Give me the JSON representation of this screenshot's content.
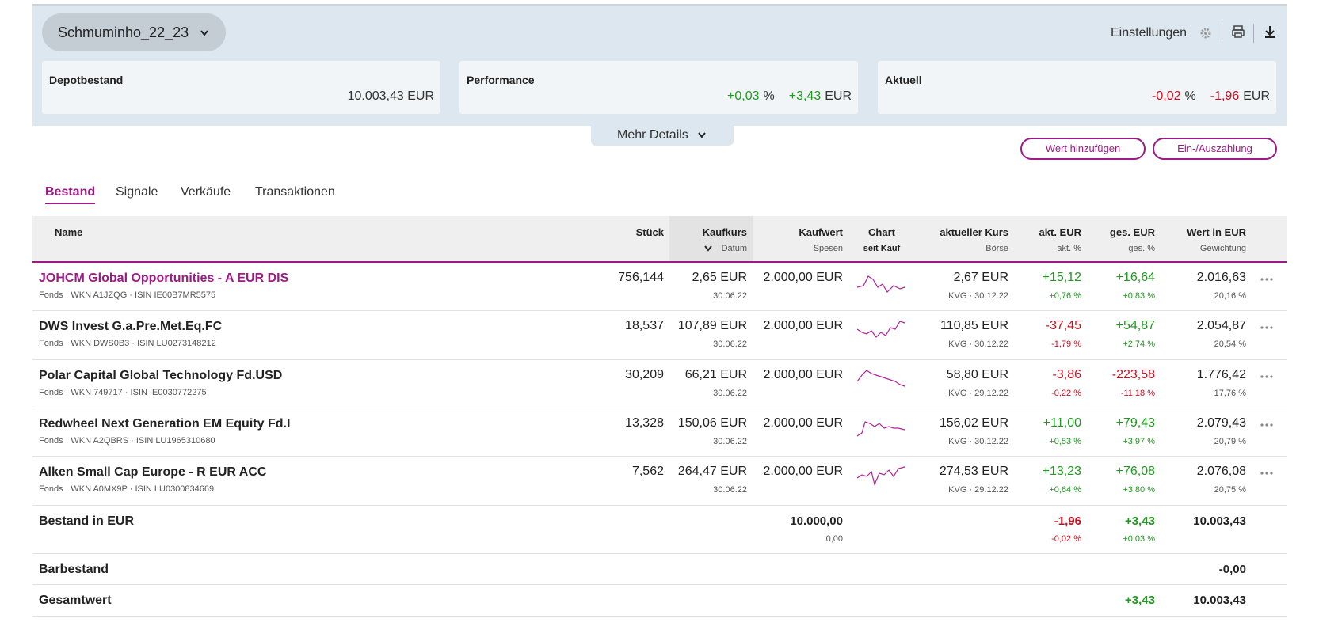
{
  "header": {
    "portfolio": "Schmuminho_22_23",
    "settings": "Einstellungen"
  },
  "summary": [
    {
      "label": "Depotbestand",
      "value": "10.003,43 EUR"
    },
    {
      "label": "Performance",
      "percent": "+0,03",
      "percent_unit": "%",
      "amount": "+3,43",
      "amount_unit": "EUR"
    },
    {
      "label": "Aktuell",
      "percent": "-0,02",
      "percent_unit": "%",
      "amount": "-1,96",
      "amount_unit": "EUR"
    }
  ],
  "more_details": "Mehr Details",
  "buttons": [
    "Wert hinzufügen",
    "Ein-/Auszahlung"
  ],
  "tabs": [
    "Bestand",
    "Signale",
    "Verkäufe",
    "Transaktionen"
  ],
  "table": {
    "columns": [
      {
        "title": "Name"
      },
      {
        "title": "Stück"
      },
      {
        "title": "Kaufkurs",
        "sub": "Datum"
      },
      {
        "title": "Kaufwert",
        "sub": "Spesen"
      },
      {
        "title": "Chart",
        "sub": "seit Kauf"
      },
      {
        "title": "aktueller Kurs",
        "sub": "Börse"
      },
      {
        "title": "akt. EUR",
        "sub": "akt. %"
      },
      {
        "title": "ges. EUR",
        "sub": "ges. %"
      },
      {
        "title": "Wert in EUR",
        "sub": "Gewichtung"
      }
    ],
    "rows": [
      {
        "name": "JOHCM Global Opportunities - A EUR DIS",
        "meta": "Fonds · WKN A1JZQG · ISIN IE00B7MR5575",
        "stueck": "756,144",
        "kaufkurs": "2,65 EUR",
        "datum": "30.06.22",
        "kaufwert": "2.000,00 EUR",
        "kurs": "2,67 EUR",
        "boerse": "KVG · 30.12.22",
        "akt_eur": "+15,12",
        "akt_pct": "+0,76 %",
        "ges_eur": "+16,64",
        "ges_pct": "+0,83 %",
        "wert": "2.016,63",
        "gewichtung": "20,16 %"
      },
      {
        "name": "DWS Invest G.a.Pre.Met.Eq.FC",
        "meta": "Fonds · WKN DWS0B3 · ISIN LU0273148212",
        "stueck": "18,537",
        "kaufkurs": "107,89 EUR",
        "datum": "30.06.22",
        "kaufwert": "2.000,00 EUR",
        "kurs": "110,85 EUR",
        "boerse": "KVG · 30.12.22",
        "akt_eur": "-37,45",
        "akt_pct": "-1,79 %",
        "ges_eur": "+54,87",
        "ges_pct": "+2,74 %",
        "wert": "2.054,87",
        "gewichtung": "20,54 %"
      },
      {
        "name": "Polar Capital Global Technology Fd.USD",
        "meta": "Fonds · WKN 749717 · ISIN IE0030772275",
        "stueck": "30,209",
        "kaufkurs": "66,21 EUR",
        "datum": "30.06.22",
        "kaufwert": "2.000,00 EUR",
        "kurs": "58,80 EUR",
        "boerse": "KVG · 29.12.22",
        "akt_eur": "-3,86",
        "akt_pct": "-0,22 %",
        "ges_eur": "-223,58",
        "ges_pct": "-11,18 %",
        "wert": "1.776,42",
        "gewichtung": "17,76 %"
      },
      {
        "name": "Redwheel Next Generation EM Equity Fd.I",
        "meta": "Fonds · WKN A2QBRS · ISIN LU1965310680",
        "stueck": "13,328",
        "kaufkurs": "150,06 EUR",
        "datum": "30.06.22",
        "kaufwert": "2.000,00 EUR",
        "kurs": "156,02 EUR",
        "boerse": "KVG · 30.12.22",
        "akt_eur": "+11,00",
        "akt_pct": "+0,53 %",
        "ges_eur": "+79,43",
        "ges_pct": "+3,97 %",
        "wert": "2.079,43",
        "gewichtung": "20,79 %"
      },
      {
        "name": "Alken Small Cap Europe - R EUR ACC",
        "meta": "Fonds · WKN A0MX9P · ISIN LU0300834669",
        "stueck": "7,562",
        "kaufkurs": "264,47 EUR",
        "datum": "30.06.22",
        "kaufwert": "2.000,00 EUR",
        "kurs": "274,53 EUR",
        "boerse": "KVG · 29.12.22",
        "akt_eur": "+13,23",
        "akt_pct": "+0,64 %",
        "ges_eur": "+76,08",
        "ges_pct": "+3,80 %",
        "wert": "2.076,08",
        "gewichtung": "20,75 %"
      }
    ],
    "totals": [
      {
        "name": "Bestand in EUR",
        "kaufwert": "10.000,00",
        "spesen": "0,00",
        "akt_eur": "-1,96",
        "akt_pct": "-0,02 %",
        "ges_eur": "+3,43",
        "ges_pct": "+0,03 %",
        "wert": "10.003,43"
      },
      {
        "name": "Barbestand",
        "wert": "-0,00"
      },
      {
        "name": "Gesamtwert",
        "ges_eur": "+3,43",
        "wert": "10.003,43"
      }
    ]
  }
}
